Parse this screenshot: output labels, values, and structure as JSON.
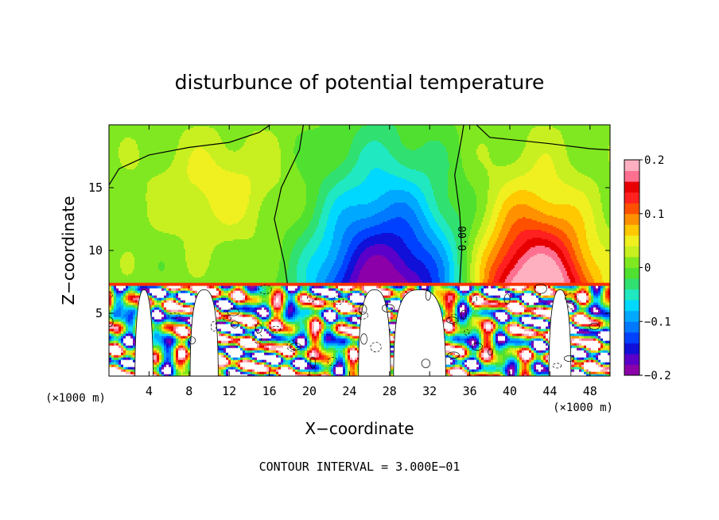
{
  "chart_data": {
    "type": "heatmap",
    "title": "disturbunce of potential temperature",
    "xlabel": "X−coordinate",
    "ylabel": "Z−coordinate",
    "x_unit": "(×1000 m)",
    "z_unit": "(×1000 m)",
    "xlim": [
      0,
      50
    ],
    "ylim": [
      0,
      20
    ],
    "x_ticks": [
      4,
      8,
      12,
      16,
      20,
      24,
      28,
      32,
      36,
      40,
      44,
      48
    ],
    "y_ticks": [
      5,
      10,
      15
    ],
    "colorbar": {
      "range": [
        -0.2,
        0.2
      ],
      "tick_labels": [
        {
          "value": 0.2,
          "label": "0.2"
        },
        {
          "value": 0.1,
          "label": "0.1"
        },
        {
          "value": 0.0,
          "label": "0"
        },
        {
          "value": -0.1,
          "label": "−0.1"
        },
        {
          "value": -0.2,
          "label": "−0.2"
        }
      ],
      "colors": [
        "#8b00a8",
        "#5a00c8",
        "#1010d8",
        "#0040ff",
        "#0078ff",
        "#00a8ff",
        "#00d8ff",
        "#20e8c0",
        "#30e070",
        "#50e030",
        "#80e820",
        "#c8f020",
        "#f0f020",
        "#ffc800",
        "#ff9000",
        "#ff5000",
        "#ff2020",
        "#e80000",
        "#ff7090",
        "#ffb0c0"
      ]
    },
    "contour_label": "0.00",
    "field_features": [
      {
        "kind": "cold_dome",
        "x_center": 27.5,
        "x_halfwidth": 9,
        "z_base": 7.3,
        "z_top": 19.5,
        "min_value": -0.2
      },
      {
        "kind": "warm_dome",
        "x_center": 42.5,
        "x_halfwidth": 7,
        "z_base": 7.3,
        "z_top": 16,
        "max_value": 0.2
      },
      {
        "kind": "weak_warm",
        "x_center": 11,
        "z_center": 15,
        "max_value": 0.04
      },
      {
        "kind": "turbulent_layer",
        "z_base": 0,
        "z_top": 7.3
      }
    ],
    "footer": "CONTOUR INTERVAL = 3.000E−01"
  }
}
